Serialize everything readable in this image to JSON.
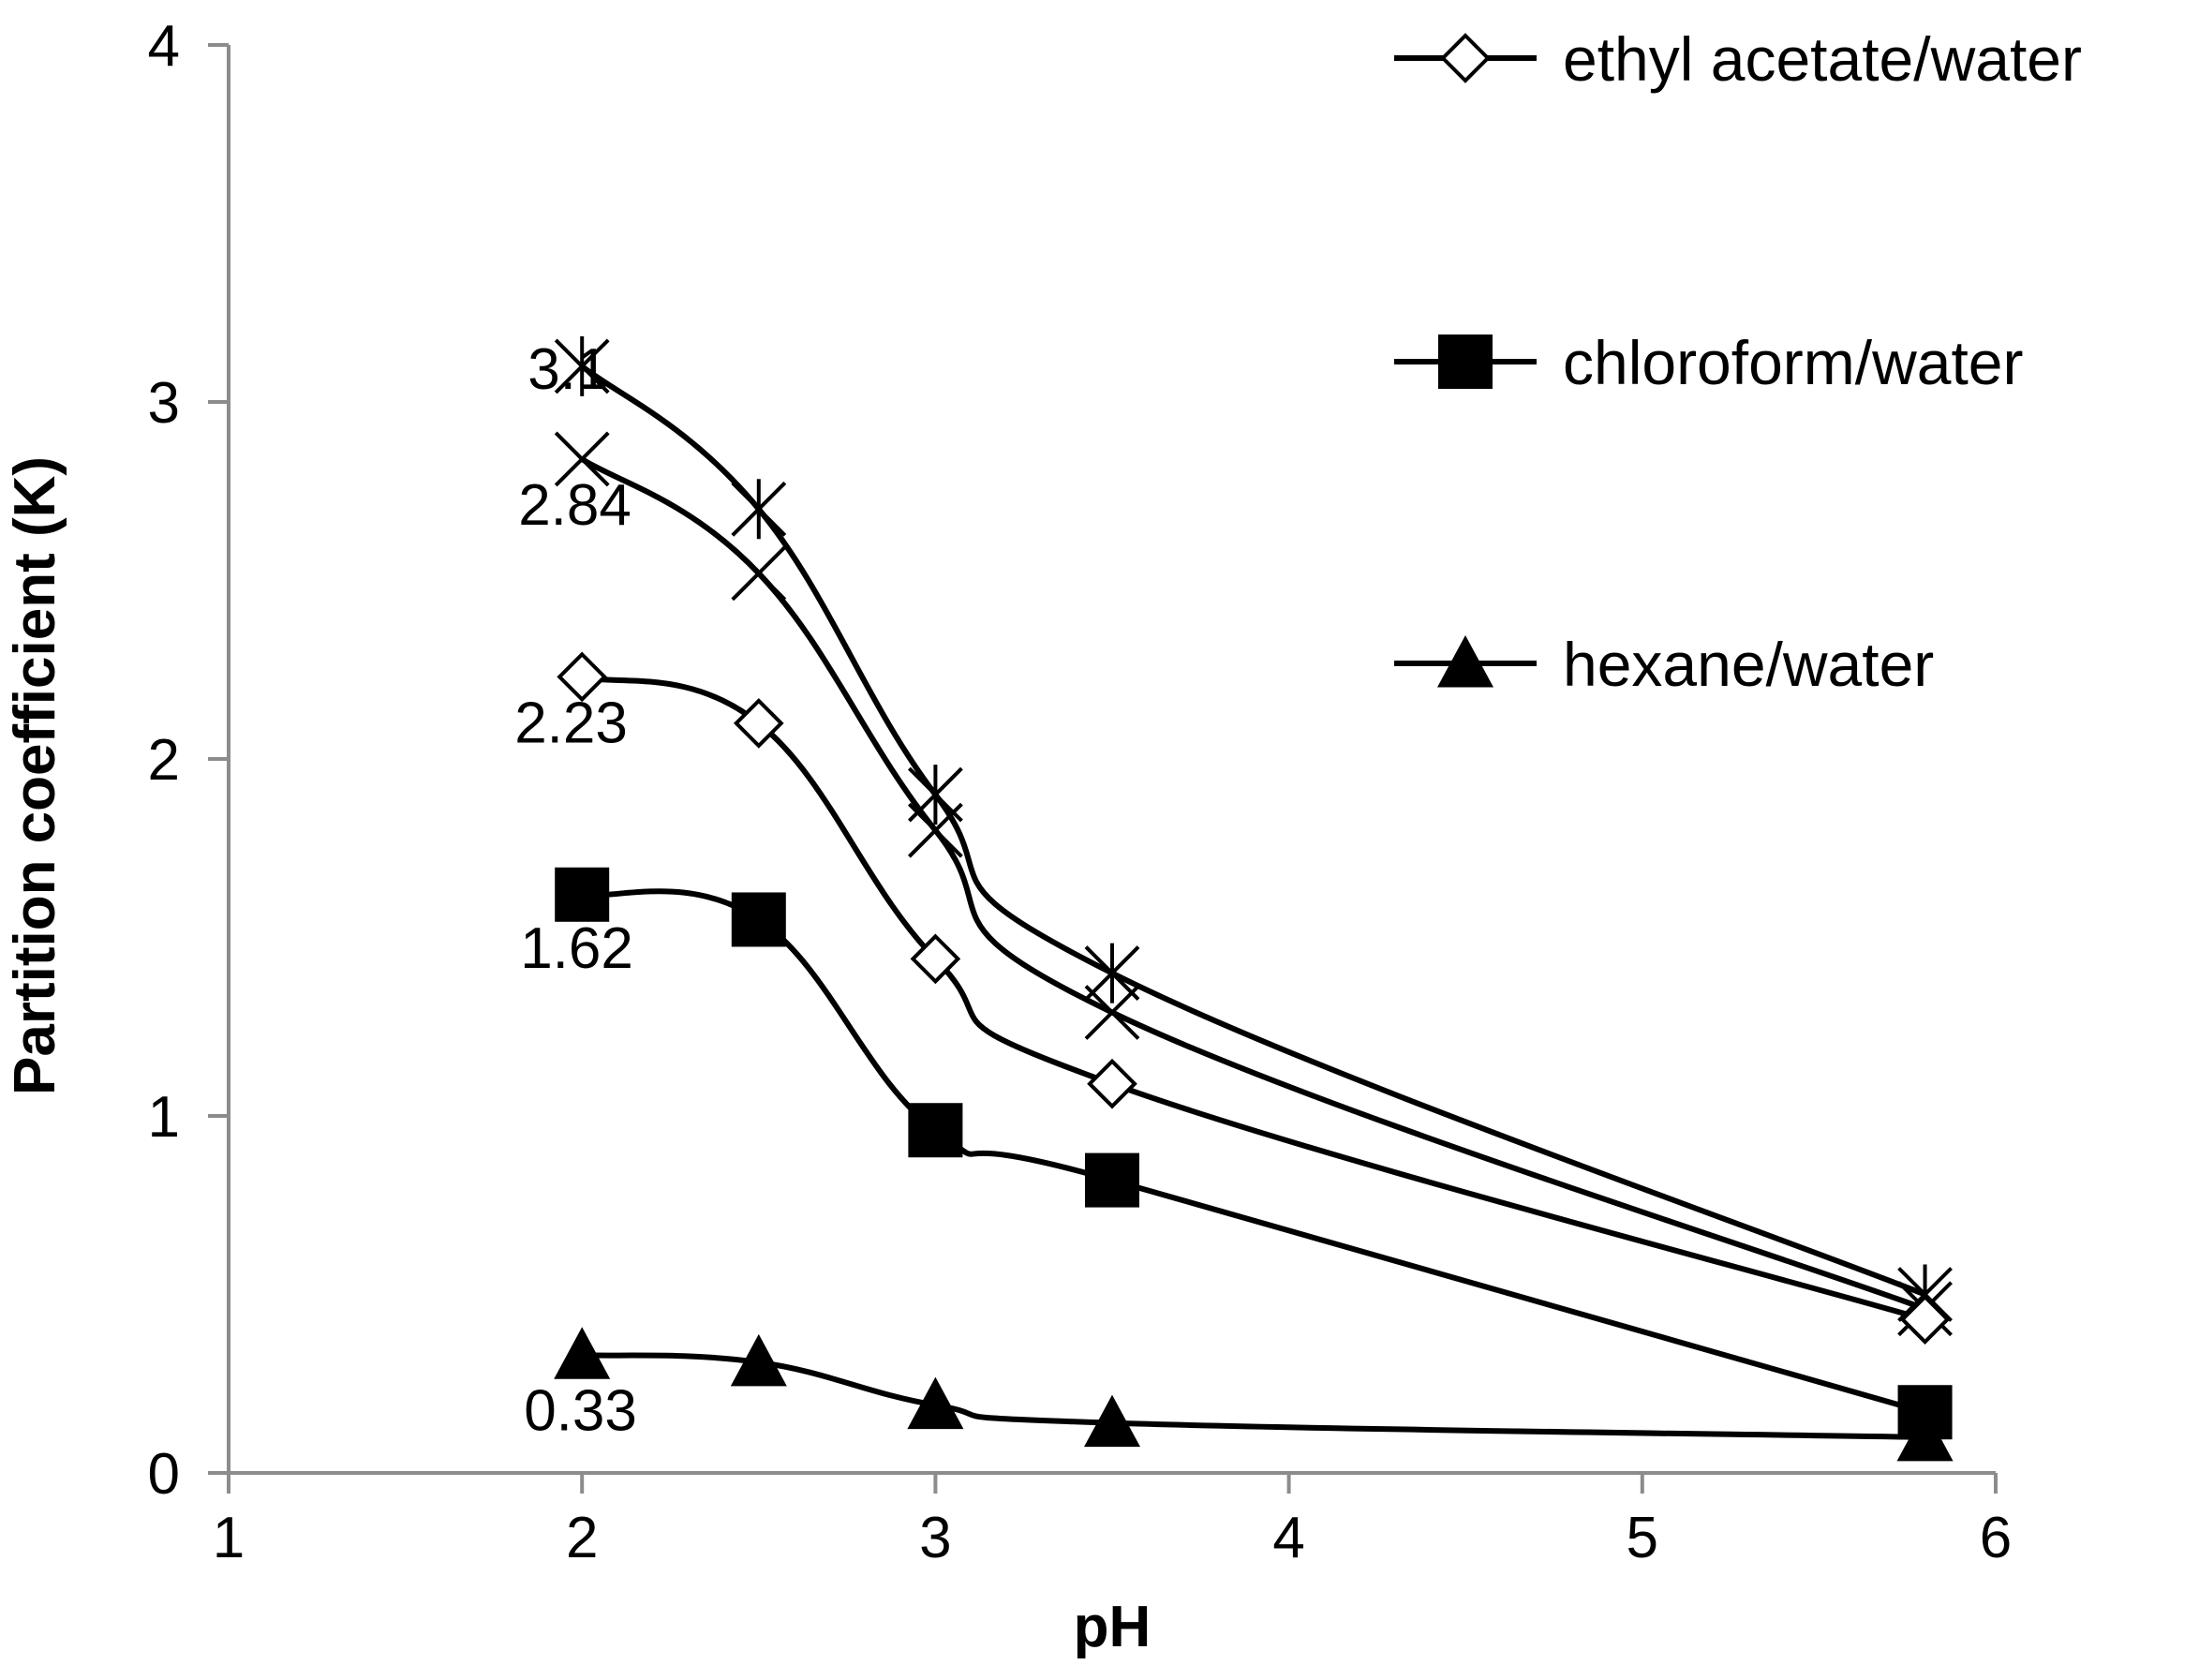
{
  "chart_data": {
    "type": "line",
    "title": "",
    "xlabel": "pH",
    "ylabel": "Partition coefficient (K)",
    "xlim": [
      1,
      6
    ],
    "ylim": [
      0,
      4
    ],
    "xticks": [
      1,
      2,
      3,
      4,
      5,
      6
    ],
    "yticks": [
      0,
      1,
      2,
      3,
      4
    ],
    "x_tick_labels": [
      "1",
      "2",
      "3",
      "4",
      "5",
      "6"
    ],
    "y_tick_labels": [
      "0",
      "1",
      "2",
      "3",
      "4"
    ],
    "grid": false,
    "legend_position": "top-right",
    "x": [
      2,
      2.5,
      3,
      3.5,
      5.8
    ],
    "series": [
      {
        "name": "",
        "marker": "star",
        "values": [
          3.1,
          2.7,
          1.9,
          1.4,
          0.5
        ],
        "label_text": "3.1",
        "in_legend": false
      },
      {
        "name": "",
        "marker": "x",
        "values": [
          2.84,
          2.52,
          1.8,
          1.29,
          0.46
        ],
        "label_text": "2.84",
        "in_legend": false
      },
      {
        "name": "ethyl acetate/water",
        "marker": "diamond-open",
        "values": [
          2.23,
          2.1,
          1.44,
          1.09,
          0.43
        ],
        "label_text": "2.23",
        "in_legend": true
      },
      {
        "name": "chloroform/water",
        "marker": "square-filled",
        "values": [
          1.62,
          1.55,
          0.96,
          0.82,
          0.17
        ],
        "label_text": "1.62",
        "in_legend": true
      },
      {
        "name": "hexane/water",
        "marker": "triangle-filled",
        "values": [
          0.33,
          0.31,
          0.19,
          0.14,
          0.1
        ],
        "label_text": "0.33",
        "in_legend": true
      }
    ],
    "annotations": [
      "3.1",
      "2.84",
      "2.23",
      "1.62",
      "0.33"
    ]
  }
}
